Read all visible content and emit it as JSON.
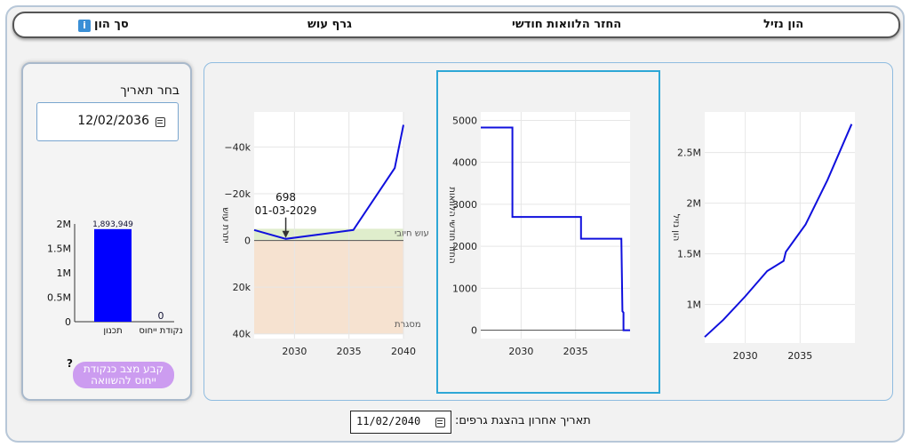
{
  "tabs": [
    {
      "label": "הון נזיל"
    },
    {
      "label": "החזר הלוואות חודשי"
    },
    {
      "label": "גרף עוש"
    },
    {
      "label": "סך הון"
    }
  ],
  "left_panel": {
    "title": "בחר תאריך",
    "date_value": "12/02/2036",
    "question_mark": "?",
    "ref_button": {
      "line1": "קבע מצב כנקודת",
      "line2": "ייחוס להשוואה"
    }
  },
  "bottom": {
    "label": "תאריך אחרון בהצגת גרפים:",
    "date_value": "11/02/2040"
  },
  "chart_data": [
    {
      "type": "bar",
      "categories": [
        "תכנון",
        "נקודת ייחוס"
      ],
      "values": [
        1893949,
        0
      ],
      "data_labels": [
        "1,893,949",
        "0"
      ],
      "ylim": [
        0,
        2000000
      ],
      "y_ticks": [
        "0",
        "0.5M",
        "1M",
        "1.5M",
        "2M"
      ],
      "color": "#0000ff"
    },
    {
      "type": "line",
      "ylabel": "יתרת עוש",
      "x_ticks": [
        "2030",
        "2035",
        "2040"
      ],
      "y_ticks": [
        "−40k",
        "−20k",
        "0",
        "20k",
        "40k"
      ],
      "xlim": [
        2026.3,
        2040
      ],
      "ylim": [
        -42000,
        55000
      ],
      "series": [
        {
          "x": [
            2026.3,
            2029.2,
            2035.4,
            2039.2,
            2040
          ],
          "y": [
            4500,
            698,
            4500,
            31000,
            49500
          ]
        }
      ],
      "zones": [
        {
          "label": "עוש חיובי",
          "from": 0,
          "to": 5000,
          "color": "#dfedcc"
        },
        {
          "label": "מסגרת",
          "from": -40000,
          "to": 0,
          "color": "#f6e2d0"
        }
      ],
      "annotation": {
        "value": "698",
        "date": "01-03-2029",
        "x": 2029.2,
        "y": 698
      },
      "color": "#1010dd"
    },
    {
      "type": "line",
      "ylabel": "החזר חודשי הלוואות",
      "x_ticks": [
        "2030",
        "2035"
      ],
      "y_ticks": [
        "0",
        "1000",
        "2000",
        "3000",
        "4000",
        "5000"
      ],
      "xlim": [
        2026.3,
        2040
      ],
      "ylim": [
        -200,
        5200
      ],
      "series": [
        {
          "x": [
            2026.3,
            2029.2,
            2029.2,
            2035.5,
            2035.5,
            2039.2,
            2039.3,
            2039.4,
            2039.4,
            2040
          ],
          "y": [
            4830,
            4830,
            2700,
            2700,
            2180,
            2180,
            450,
            420,
            0,
            0
          ]
        }
      ],
      "color": "#1010dd"
    },
    {
      "type": "line",
      "ylabel": "הון נזיל",
      "x_ticks": [
        "2030",
        "2035"
      ],
      "y_ticks": [
        "1M",
        "1.5M",
        "2M",
        "2.5M"
      ],
      "xlim": [
        2026.3,
        2040
      ],
      "ylim": [
        620000,
        2900000
      ],
      "series": [
        {
          "x": [
            2026.3,
            2028,
            2030,
            2032,
            2033.5,
            2033.7,
            2035.5,
            2037.5,
            2039.7
          ],
          "y": [
            680000,
            850000,
            1080000,
            1330000,
            1430000,
            1520000,
            1790000,
            2230000,
            2780000
          ]
        }
      ],
      "color": "#1010dd"
    }
  ]
}
